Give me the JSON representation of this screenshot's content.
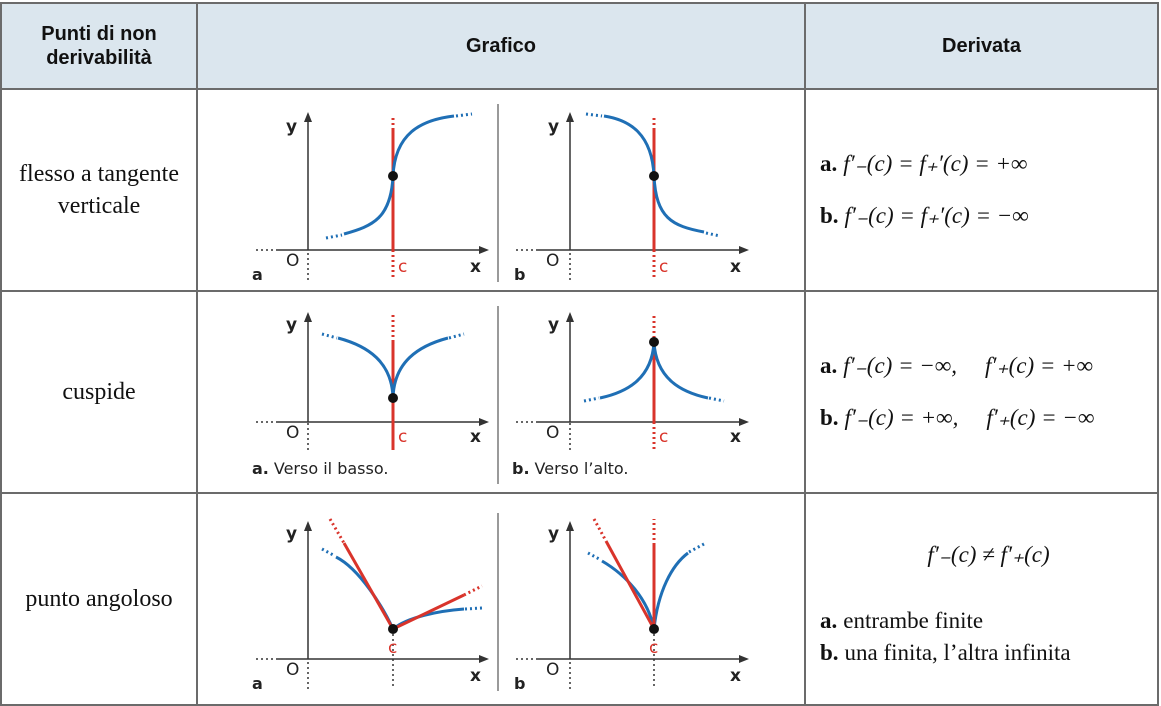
{
  "headers": {
    "col1": "Punti di non derivabilità",
    "col2": "Grafico",
    "col3": "Derivata"
  },
  "rows": [
    {
      "name": "flesso a tangente verticale",
      "graph_a": {
        "tag": "a",
        "caption": ""
      },
      "graph_b": {
        "tag": "b",
        "caption": ""
      },
      "deriv_a": {
        "label": "a.",
        "expr": "f′₋(c) = f₊′(c) = +∞"
      },
      "deriv_b": {
        "label": "b.",
        "expr": "f′₋(c) = f₊′(c) = −∞"
      }
    },
    {
      "name": "cuspide",
      "graph_a": {
        "tag": "a.",
        "caption": "Verso il basso."
      },
      "graph_b": {
        "tag": "b.",
        "caption": "Verso l’alto."
      },
      "deriv_a": {
        "label": "a.",
        "left": "f′₋(c) = −∞,",
        "right": "f′₊(c) = +∞"
      },
      "deriv_b": {
        "label": "b.",
        "left": "f′₋(c) = +∞,",
        "right": "f′₊(c) = −∞"
      }
    },
    {
      "name": "punto angoloso",
      "graph_a": {
        "tag": "a",
        "caption": ""
      },
      "graph_b": {
        "tag": "b",
        "caption": ""
      },
      "deriv_main": "f′₋(c) ≠ f′₊(c)",
      "deriv_a": {
        "label": "a.",
        "text": "entrambe finite"
      },
      "deriv_b": {
        "label": "b.",
        "text": "una finita, l’altra infinita"
      }
    }
  ],
  "axis": {
    "x": "x",
    "y": "y",
    "origin": "O",
    "point": "c"
  },
  "colors": {
    "header_bg": "#dbe6ee",
    "curve": "#1f6fb5",
    "tangent": "#d9342b",
    "border": "#6b6b6b"
  }
}
